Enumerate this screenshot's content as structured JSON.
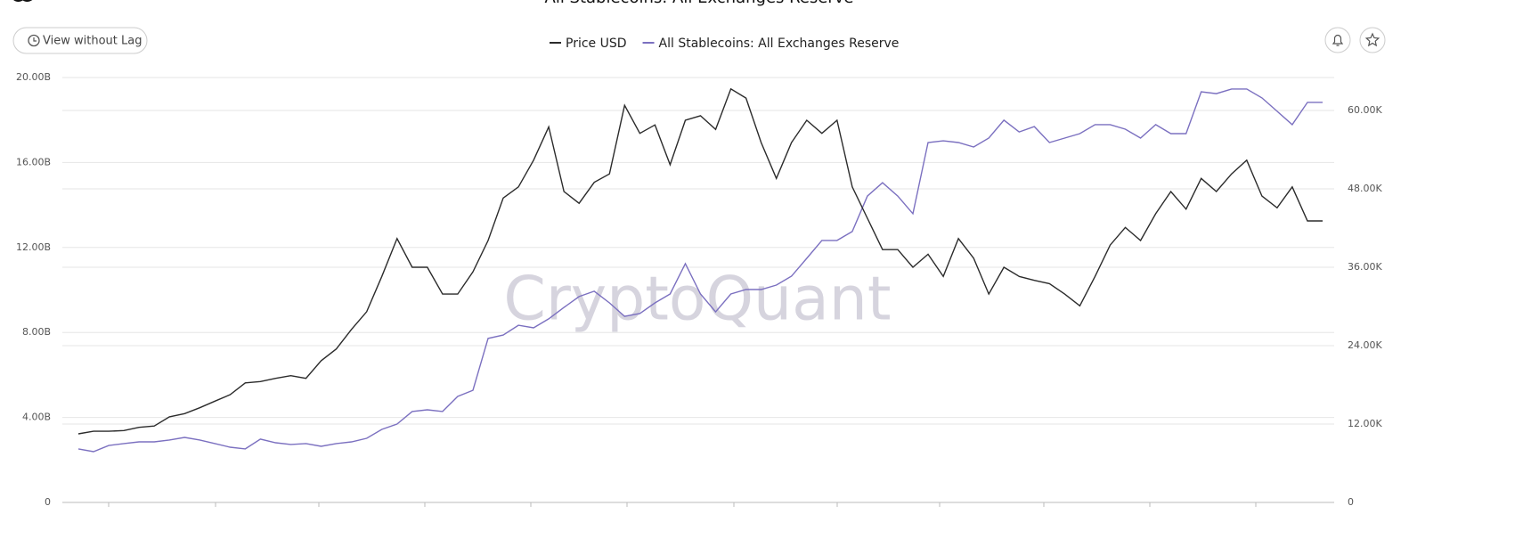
{
  "controls": {
    "lag_button": "View without Lag"
  },
  "chart_data": {
    "type": "line",
    "title": "All Stablecoins: All Exchanges Reserve",
    "watermark": "CryptoQuant",
    "grid": true,
    "categories": [
      null,
      null,
      null,
      null,
      null,
      null,
      null,
      null,
      null,
      null,
      null,
      null,
      null,
      null,
      null,
      null,
      null,
      null,
      null,
      null,
      null,
      null,
      null,
      null,
      null,
      null,
      null,
      null,
      null,
      null,
      null,
      null,
      null,
      null,
      null,
      null,
      null,
      null,
      null,
      null,
      null,
      null,
      null,
      null,
      null,
      null,
      null,
      null,
      null,
      null,
      null,
      null,
      null,
      null,
      null,
      null,
      null,
      null,
      null,
      null,
      null,
      null,
      null,
      null,
      null,
      null,
      null,
      null,
      null,
      null,
      null,
      null,
      null,
      null,
      null,
      null,
      null,
      null,
      null,
      null,
      null,
      null,
      null
    ],
    "ylim": [
      0,
      20
    ],
    "yticks": [
      0,
      {
        "value": 4,
        "label": "4.00B"
      },
      {
        "value": 8,
        "label": "8.00B"
      },
      {
        "value": 12,
        "label": "12.00B"
      },
      {
        "value": 16,
        "label": "16.00B"
      },
      {
        "value": 20,
        "label": "20.00B"
      }
    ],
    "y2lim": [
      0,
      65.05
    ],
    "y2ticks": [
      0,
      {
        "value": 12,
        "label": "12.00K"
      },
      {
        "value": 24,
        "label": "24.00K"
      },
      {
        "value": 36,
        "label": "36.00K"
      },
      {
        "value": 48,
        "label": "48.00K"
      },
      {
        "value": 60,
        "label": "60.00K"
      }
    ],
    "series": [
      {
        "name": "Price USD",
        "color": "#2b2b2b",
        "axis": "y2",
        "values": [
          10.5,
          10.9,
          10.9,
          11.0,
          11.5,
          11.7,
          13.1,
          13.6,
          14.5,
          15.5,
          16.5,
          18.3,
          18.5,
          19.0,
          19.4,
          19.0,
          21.7,
          23.5,
          26.5,
          29.2,
          34.6,
          40.4,
          36.0,
          36.0,
          31.9,
          31.9,
          35.3,
          40.1,
          46.6,
          48.3,
          52.4,
          57.5,
          47.6,
          45.8,
          49.0,
          50.3,
          60.8,
          56.5,
          57.8,
          51.7,
          58.5,
          59.2,
          57.1,
          63.3,
          61.9,
          55.1,
          49.6,
          55.1,
          58.5,
          56.5,
          58.5,
          48.3,
          43.5,
          38.7,
          38.7,
          36.0,
          38.0,
          34.6,
          40.4,
          37.4,
          31.9,
          36.0,
          34.6,
          34.0,
          33.5,
          31.9,
          30.1,
          34.6,
          39.4,
          42.1,
          40.1,
          44.2,
          47.6,
          44.9,
          49.6,
          47.6,
          50.3,
          52.4,
          46.9,
          45.1,
          48.3,
          43.1,
          43.1
        ]
      },
      {
        "name": "All Stablecoins: All Exchanges Reserve",
        "color": "#7b70c0",
        "axis": "y",
        "values": [
          2.52,
          2.39,
          2.68,
          2.77,
          2.85,
          2.85,
          2.94,
          3.06,
          2.94,
          2.77,
          2.6,
          2.52,
          2.98,
          2.81,
          2.73,
          2.77,
          2.64,
          2.77,
          2.85,
          3.02,
          3.44,
          3.69,
          4.28,
          4.36,
          4.28,
          4.99,
          5.28,
          7.72,
          7.88,
          8.34,
          8.22,
          8.64,
          9.18,
          9.69,
          9.94,
          9.39,
          8.76,
          8.89,
          9.39,
          9.81,
          11.24,
          9.81,
          8.97,
          9.81,
          10.02,
          10.02,
          10.23,
          10.65,
          11.49,
          12.33,
          12.33,
          12.75,
          14.42,
          15.05,
          14.42,
          13.59,
          16.94,
          17.02,
          16.94,
          16.73,
          17.15,
          17.99,
          17.44,
          17.69,
          16.94,
          17.15,
          17.36,
          17.78,
          17.78,
          17.57,
          17.15,
          17.78,
          17.36,
          17.36,
          19.33,
          19.24,
          19.46,
          19.46,
          19.04,
          18.41,
          17.78,
          18.83,
          18.83
        ]
      }
    ]
  }
}
